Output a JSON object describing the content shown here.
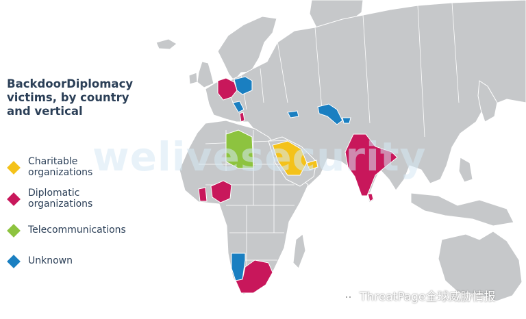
{
  "title_lines": [
    "BackdoorDiplomacy",
    "victims, by country",
    "and vertical"
  ],
  "legend": [
    {
      "label_lines": [
        "Charitable",
        "organizations"
      ],
      "color": "#f4c21a"
    },
    {
      "label_lines": [
        "Diplomatic",
        "organizations"
      ],
      "color": "#c8175b"
    },
    {
      "label_lines": [
        "Telecommunications"
      ],
      "color": "#8dc33f"
    },
    {
      "label_lines": [
        "Unknown"
      ],
      "color": "#1a7fc1"
    }
  ],
  "watermark": "welivesecurity",
  "credit": "ThreatPage全球威胁情报",
  "colors": {
    "land": "#c6c8ca",
    "border": "#ffffff",
    "ocean": "#ffffff"
  },
  "map_elements": {
    "credit_icon": "wechat-icon"
  }
}
